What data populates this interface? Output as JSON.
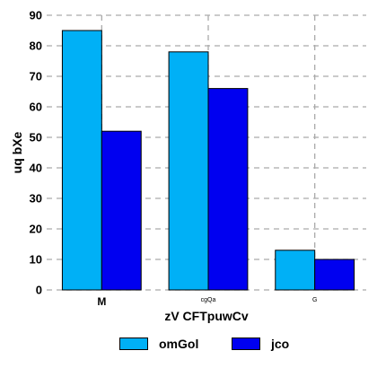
{
  "chart_data": {
    "type": "bar",
    "title": "",
    "xlabel": "zV CFTpuwCv",
    "ylabel": "uq bXe",
    "categories": [
      "M",
      "cgQa",
      "G"
    ],
    "series": [
      {
        "name": "omGol",
        "color": "#00b0f6",
        "values": [
          85,
          78,
          13
        ]
      },
      {
        "name": "jco",
        "color": "#0000f0",
        "values": [
          52,
          66,
          10
        ]
      }
    ],
    "ylim": [
      0,
      90
    ],
    "yticks": [
      0,
      10,
      20,
      30,
      40,
      50,
      60,
      70,
      80,
      90
    ],
    "grid": true,
    "legend_position": "bottom"
  }
}
